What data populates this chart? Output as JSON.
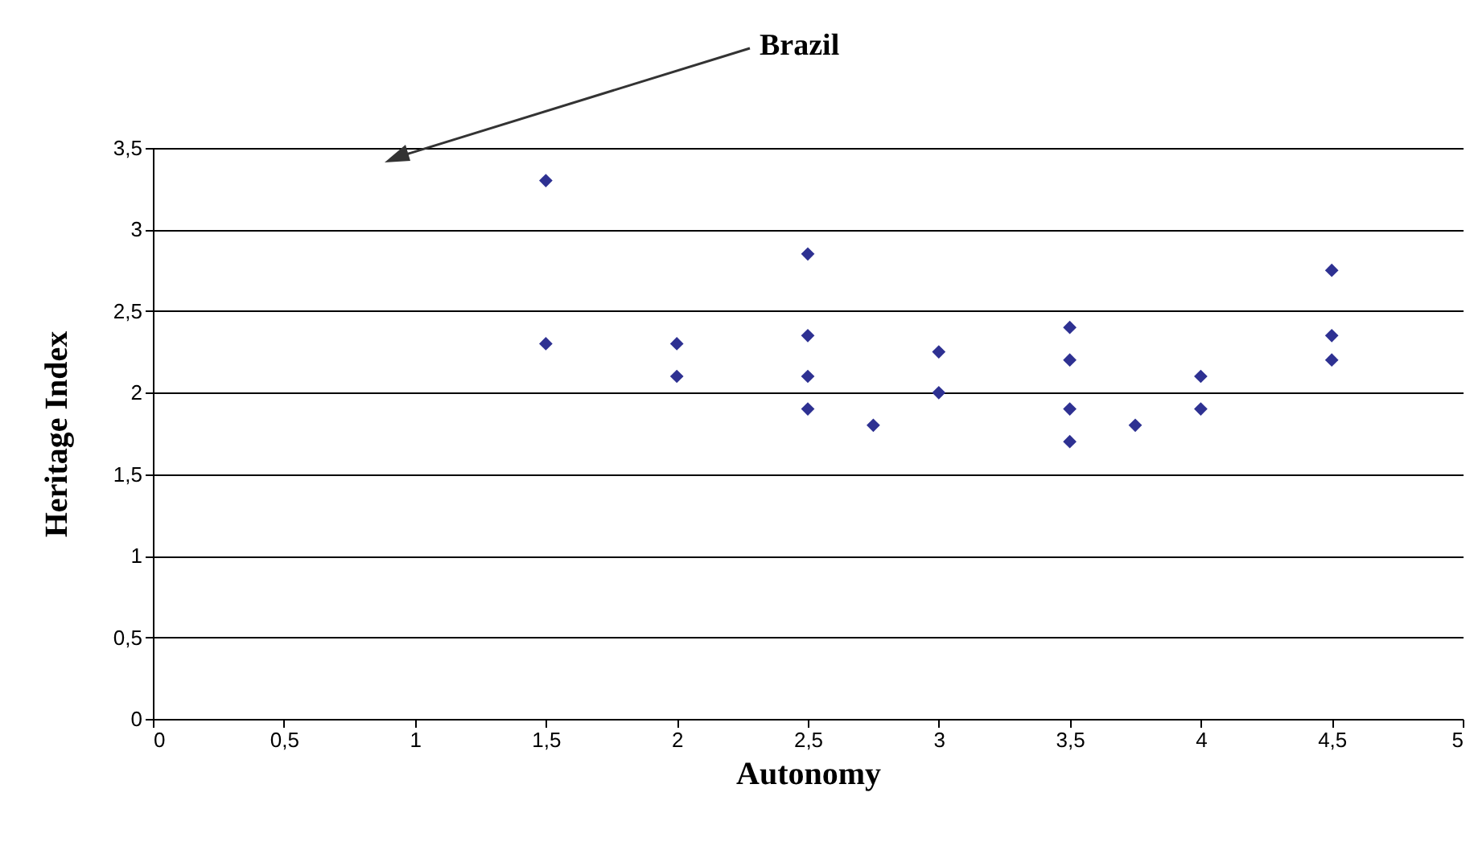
{
  "chart_data": {
    "type": "scatter",
    "xlabel": "Autonomy",
    "ylabel": "Heritage Index",
    "annotations": [
      "Brazil"
    ],
    "x": [
      1.5,
      1.5,
      2,
      2,
      2.5,
      2.5,
      2.5,
      2.5,
      2.75,
      3,
      3,
      3.5,
      3.5,
      3.5,
      3.5,
      3.75,
      4,
      4,
      4.5,
      4.5,
      4.5
    ],
    "series": [
      {
        "color": "#2e3192",
        "values": [
          3.3,
          2.3,
          2.3,
          2.1,
          2.85,
          2.35,
          2.1,
          1.9,
          1.8,
          2.25,
          2.0,
          2.4,
          2.2,
          1.9,
          1.7,
          1.8,
          2.1,
          1.9,
          2.75,
          2.35,
          2.2
        ]
      }
    ],
    "xlim": [
      0,
      5
    ],
    "ylim": [
      0,
      3.5
    ],
    "xticks": [
      0,
      {
        "value": 0.5,
        "label": "0,5"
      },
      1,
      {
        "value": 1.5,
        "label": "1,5"
      },
      2,
      {
        "value": 2.5,
        "label": "2,5"
      },
      3,
      {
        "value": 3.5,
        "label": "3,5"
      },
      4,
      {
        "value": 4.5,
        "label": "4,5"
      },
      5
    ],
    "yticks": [
      0,
      {
        "value": 0.5,
        "label": "0,5"
      },
      1,
      {
        "value": 1.5,
        "label": "1,5"
      },
      2,
      {
        "value": 2.5,
        "label": "2,5"
      },
      3,
      {
        "value": 3.5,
        "label": "3,5"
      }
    ],
    "grid": "y",
    "marker": "diamond",
    "legend": false
  }
}
